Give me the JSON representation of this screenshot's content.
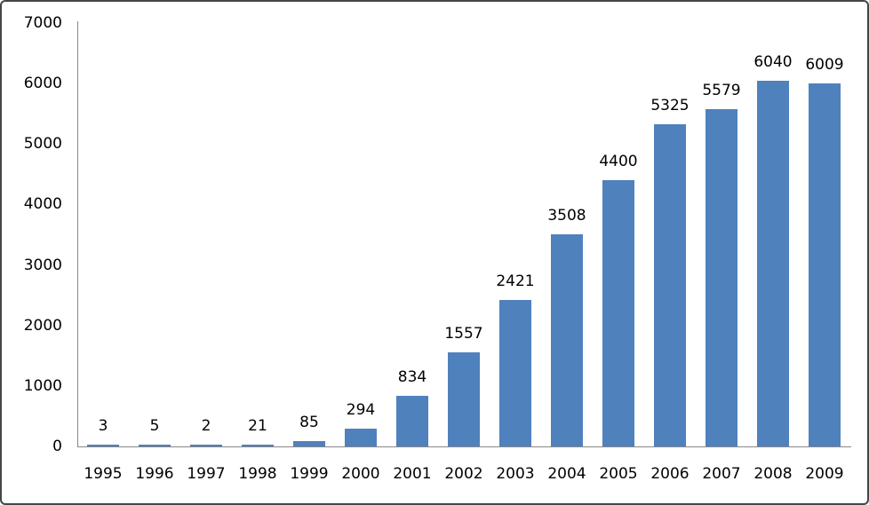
{
  "chart_data": {
    "type": "bar",
    "categories": [
      "1995",
      "1996",
      "1997",
      "1998",
      "1999",
      "2000",
      "2001",
      "2002",
      "2003",
      "2004",
      "2005",
      "2006",
      "2007",
      "2008",
      "2009"
    ],
    "values": [
      3,
      5,
      2,
      21,
      85,
      294,
      834,
      1557,
      2421,
      3508,
      4400,
      5325,
      5579,
      6040,
      6009
    ],
    "title": "",
    "xlabel": "",
    "ylabel": "",
    "ylim": [
      0,
      7000
    ],
    "y_ticks": [
      0,
      1000,
      2000,
      3000,
      4000,
      5000,
      6000,
      7000
    ],
    "grid": false,
    "legend": false,
    "data_labels_shown": true,
    "bar_color": "#4F81BD",
    "axis_color": "#878787",
    "text_color": "#000000",
    "background_color": "#ffffff",
    "border_color": "#464646"
  }
}
